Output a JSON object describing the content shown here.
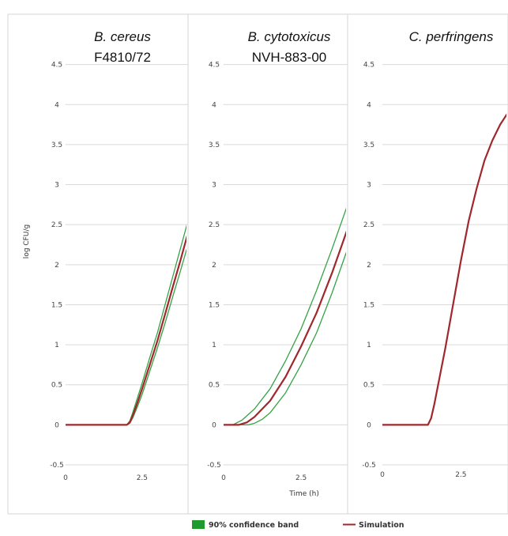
{
  "chart_data": [
    {
      "type": "line",
      "title": "B. cereus",
      "subtitle": "F4810/72",
      "ylabel": "log CFU/g",
      "xlabel": "",
      "xlim": [
        0,
        4
      ],
      "ylim": [
        -0.5,
        5
      ],
      "y_ticks": [
        "-0.5",
        "0",
        "0.5",
        "1",
        "1.5",
        "2",
        "2.5",
        "3",
        "3.5",
        "4",
        "4.5"
      ],
      "x_ticks": [
        "0",
        "2.5"
      ],
      "grid": true,
      "series": [
        {
          "name": "Simulation",
          "color": "#a0282d",
          "x": [
            0,
            2.0,
            2.1,
            2.2,
            2.35,
            2.5,
            2.75,
            3.0,
            3.25,
            3.5,
            3.75,
            4.0
          ],
          "y": [
            0,
            0,
            0.03,
            0.12,
            0.28,
            0.45,
            0.75,
            1.05,
            1.38,
            1.72,
            2.05,
            2.4
          ]
        },
        {
          "name": "upper",
          "color": "#35a345",
          "x": [
            0,
            2.0,
            2.1,
            2.2,
            2.35,
            2.5,
            2.75,
            3.0,
            3.25,
            3.5,
            3.75,
            4.0
          ],
          "y": [
            0,
            0,
            0.05,
            0.16,
            0.34,
            0.52,
            0.84,
            1.15,
            1.5,
            1.85,
            2.2,
            2.55
          ]
        },
        {
          "name": "lower",
          "color": "#35a345",
          "x": [
            0,
            2.0,
            2.1,
            2.2,
            2.35,
            2.5,
            2.75,
            3.0,
            3.25,
            3.5,
            3.75,
            4.0
          ],
          "y": [
            0,
            0,
            0.02,
            0.09,
            0.23,
            0.38,
            0.67,
            0.96,
            1.27,
            1.6,
            1.92,
            2.25
          ]
        }
      ]
    },
    {
      "type": "line",
      "title": "B. cytotoxicus",
      "subtitle": "NVH-883-00",
      "xlabel": "Time (h)",
      "ylabel": "",
      "xlim": [
        0,
        4
      ],
      "ylim": [
        -0.5,
        5
      ],
      "y_ticks": [
        "-0.5",
        "0",
        "0.5",
        "1",
        "1.5",
        "2",
        "2.5",
        "3",
        "3.5",
        "4",
        "4.5"
      ],
      "x_ticks": [
        "0",
        "2.5"
      ],
      "grid": true,
      "series": [
        {
          "name": "Simulation",
          "color": "#a0282d",
          "x": [
            0,
            0.5,
            0.75,
            1.0,
            1.5,
            2.0,
            2.5,
            3.0,
            3.5,
            4.0
          ],
          "y": [
            0,
            0,
            0.03,
            0.1,
            0.3,
            0.6,
            0.98,
            1.4,
            1.9,
            2.45
          ]
        },
        {
          "name": "upper",
          "color": "#35a345",
          "x": [
            0,
            0.3,
            0.6,
            1.0,
            1.5,
            2.0,
            2.5,
            3.0,
            3.5,
            4.0
          ],
          "y": [
            0,
            0,
            0.06,
            0.2,
            0.45,
            0.8,
            1.2,
            1.68,
            2.2,
            2.75
          ]
        },
        {
          "name": "lower",
          "color": "#35a345",
          "x": [
            0,
            0.8,
            1.0,
            1.25,
            1.5,
            2.0,
            2.5,
            3.0,
            3.5,
            4.0
          ],
          "y": [
            0,
            0,
            0.02,
            0.07,
            0.15,
            0.4,
            0.75,
            1.15,
            1.65,
            2.2
          ]
        }
      ]
    },
    {
      "type": "line",
      "title": "C. perfringens",
      "subtitle": "",
      "xlabel": "",
      "ylabel": "",
      "xlim": [
        0,
        4
      ],
      "ylim": [
        -0.5,
        5
      ],
      "y_ticks": [
        "-0.5",
        "0",
        "0.5",
        "1",
        "1.5",
        "2",
        "2.5",
        "3",
        "3.5",
        "4",
        "4.5"
      ],
      "x_ticks": [
        "0",
        "2.5"
      ],
      "grid": true,
      "series": [
        {
          "name": "Simulation",
          "color": "#a0282d",
          "x": [
            0,
            1.45,
            1.55,
            1.65,
            1.8,
            2.0,
            2.25,
            2.5,
            2.75,
            3.0,
            3.25,
            3.5,
            3.75,
            4.0
          ],
          "y": [
            0,
            0,
            0.08,
            0.25,
            0.55,
            0.95,
            1.5,
            2.05,
            2.55,
            2.95,
            3.3,
            3.55,
            3.75,
            3.9
          ]
        }
      ]
    }
  ],
  "legend": {
    "band_label": "90% confidence band",
    "band_color": "#1f9a2e",
    "line_label": "Simulation",
    "line_color": "#a0282d"
  }
}
